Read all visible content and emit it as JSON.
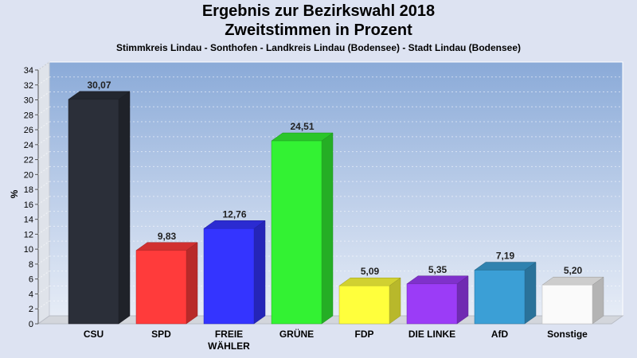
{
  "chart_data": {
    "type": "bar",
    "title": "Ergebnis zur Bezirkswahl 2018",
    "title2": "Zweitstimmen in Prozent",
    "subtitle": "Stimmkreis Lindau - Sonthofen - Landkreis Lindau (Bodensee) - Stadt Lindau (Bodensee)",
    "ylabel": "%",
    "xlabel": "",
    "ylim": [
      0,
      34
    ],
    "ytick_step": 2,
    "grid": true,
    "categories": [
      "CSU",
      "SPD",
      "FREIE WÄHLER",
      "GRÜNE",
      "FDP",
      "DIE LINKE",
      "AfD",
      "Sonstige"
    ],
    "category_lines": [
      [
        "CSU"
      ],
      [
        "SPD"
      ],
      [
        "FREIE",
        "WÄHLER"
      ],
      [
        "GRÜNE"
      ],
      [
        "FDP"
      ],
      [
        "DIE LINKE"
      ],
      [
        "AfD"
      ],
      [
        "Sonstige"
      ]
    ],
    "values": [
      30.07,
      9.83,
      12.76,
      24.51,
      5.09,
      5.35,
      7.19,
      5.2
    ],
    "value_labels": [
      "30,07",
      "9,83",
      "12,76",
      "24,51",
      "5,09",
      "5,35",
      "7,19",
      "5,20"
    ],
    "colors": [
      "#2b2f39",
      "#ff3b3b",
      "#3434ff",
      "#33f233",
      "#ffff3c",
      "#9b3cf7",
      "#3b9fd6",
      "#fafafa"
    ]
  }
}
